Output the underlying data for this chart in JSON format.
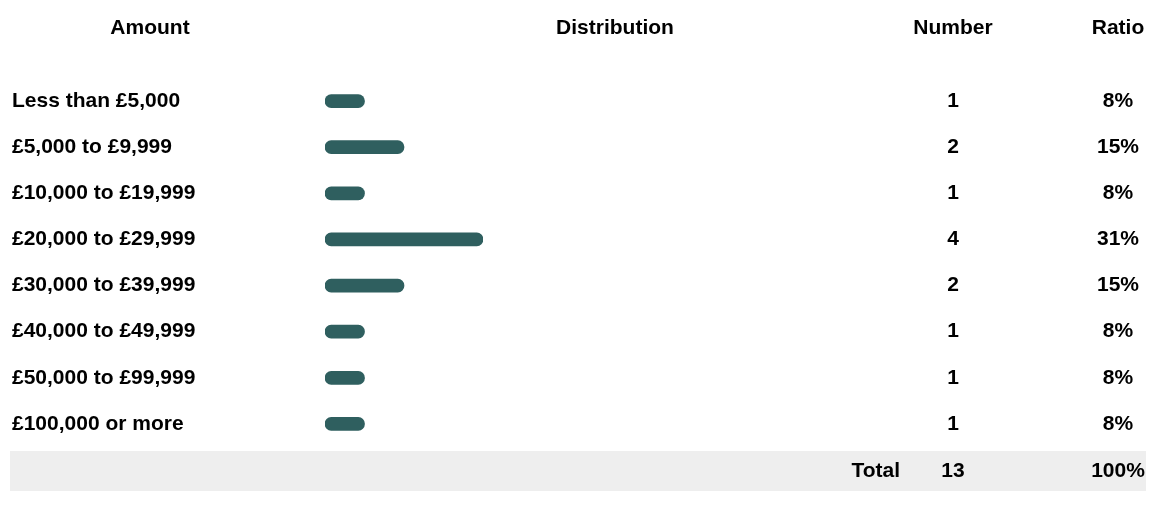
{
  "chart_data": {
    "type": "bar",
    "orientation": "horizontal",
    "ylabel": "Amount",
    "xlabel": "Distribution",
    "categories": [
      "Less than £5,000",
      "£5,000 to £9,999",
      "£10,000 to £19,999",
      "£20,000 to £29,999",
      "£30,000 to £39,999",
      "£40,000 to £49,999",
      "£50,000 to £99,999",
      "£100,000 or more"
    ],
    "values": [
      1,
      2,
      1,
      4,
      2,
      1,
      1,
      1
    ],
    "color": "#2f5f5f",
    "value_labels": [
      "1",
      "2",
      "1",
      "4",
      "2",
      "1",
      "1",
      "1"
    ],
    "annotations": [
      "Number",
      "Ratio",
      "8%",
      "15%",
      "8%",
      "31%",
      "15%",
      "8%",
      "8%",
      "8%",
      "Total",
      "13",
      "100%"
    ],
    "tick_labels": "y",
    "legend": false
  }
}
